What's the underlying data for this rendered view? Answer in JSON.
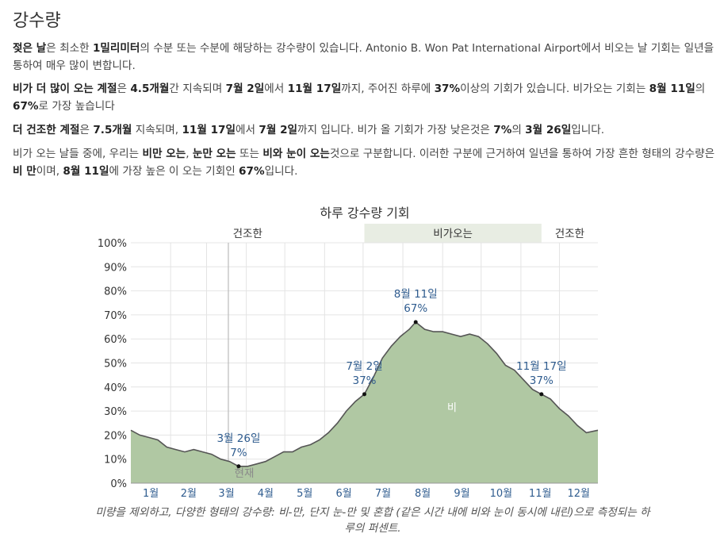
{
  "section_title": "강수량",
  "p1": {
    "a": "젖은 날",
    "b": "은 최소한 ",
    "c": "1밀리미터",
    "d": "의 수분 또는 수분에 해당하는 강수량이 있습니다. Antonio B. Won Pat International Airport에서 비오는 날 기회는 일년을 통하여 매우 많이 변합니다."
  },
  "p2": {
    "a": "비가 더 많이 오는 계절",
    "b": "은 ",
    "c": "4.5개월",
    "d": "간 지속되며 ",
    "e": "7월 2일",
    "f": "에서 ",
    "g": "11월 17일",
    "h": "까지, 주어진 하루에 ",
    "i": "37%",
    "j": "이상의 기회가 있습니다. 비가오는 기회는 ",
    "k": "8월 11일",
    "l": "의 ",
    "m": "67%",
    "n": "로 가장 높습니다"
  },
  "p3": {
    "a": "더 건조한 계절",
    "b": "은 ",
    "c": "7.5개월",
    "d": " 지속되며, ",
    "e": "11월 17일",
    "f": "에서 ",
    "g": "7월 2일",
    "h": "까지 입니다. 비가 올 기회가 가장 낮은것은 ",
    "i": "7%",
    "j": "의 ",
    "k": "3월 26일",
    "l": "입니다."
  },
  "p4": {
    "a": "비가 오는 날들 중에, 우리는 ",
    "b": "비만 오는",
    "c": ", ",
    "d": "눈만 오는",
    "e": " 또는 ",
    "f": "비와 눈이 오는",
    "g": "것으로 구분합니다. 이러한 구분에 근거하여 일년을 통하여 가장 흔한 형태의 강수량은 ",
    "h": "비 만",
    "i": "이며, ",
    "j": "8월 11일",
    "k": "에 가장 높은 이 오는 기회인 ",
    "l": "67%",
    "m": "입니다."
  },
  "caption": "미량을 제외하고, 다양한 형태의 강수량: 비-만, 단지 눈-만 및 혼합 (같은 시간 내에 비와 눈이 동시에 내린)으로 측정되는 하루의 퍼센트.",
  "colors": {
    "area_fill": "#b0c8a3",
    "area_line": "#555555",
    "wet_season_band": "#e8ede3",
    "annotation_blue": "#2f5c8f",
    "grid": "#e4e4e4"
  },
  "chart_data": {
    "type": "area",
    "title": "하루 강수량 기회",
    "ylim": [
      0,
      100
    ],
    "yticks": [
      "0%",
      "10%",
      "20%",
      "30%",
      "40%",
      "50%",
      "60%",
      "70%",
      "80%",
      "90%",
      "100%"
    ],
    "months": [
      "1월",
      "2월",
      "3월",
      "4월",
      "5월",
      "6월",
      "7월",
      "8월",
      "9월",
      "10월",
      "11월",
      "12월"
    ],
    "seasons": [
      {
        "label": "건조한",
        "start_day": 1,
        "end_day": 183,
        "wet": false
      },
      {
        "label": "비가오는",
        "start_day": 183,
        "end_day": 321,
        "wet": true
      },
      {
        "label": "건조한",
        "start_day": 321,
        "end_day": 365,
        "wet": false
      }
    ],
    "series": [
      {
        "name": "비",
        "x_day": [
          1,
          8,
          15,
          22,
          29,
          36,
          43,
          50,
          57,
          64,
          71,
          78,
          85,
          92,
          99,
          106,
          113,
          120,
          127,
          134,
          141,
          148,
          155,
          162,
          169,
          176,
          183,
          190,
          197,
          204,
          211,
          218,
          223,
          230,
          237,
          244,
          251,
          258,
          265,
          272,
          279,
          286,
          293,
          300,
          307,
          314,
          321,
          328,
          335,
          342,
          349,
          356,
          365
        ],
        "y": [
          22,
          20,
          19,
          18,
          15,
          14,
          13,
          14,
          13,
          12,
          10,
          9,
          7,
          7,
          8,
          9,
          11,
          13,
          13,
          15,
          16,
          18,
          21,
          25,
          30,
          34,
          37,
          44,
          52,
          57,
          61,
          64,
          67,
          64,
          63,
          63,
          62,
          61,
          62,
          61,
          58,
          54,
          49,
          47,
          43,
          39,
          37,
          35,
          31,
          28,
          24,
          21,
          22
        ]
      }
    ],
    "annotations": [
      {
        "date": "3월 26일",
        "value": "7%",
        "x_day": 85,
        "y": 7
      },
      {
        "date": "7월 2일",
        "value": "37%",
        "x_day": 183,
        "y": 37
      },
      {
        "date": "8월 11일",
        "value": "67%",
        "x_day": 223,
        "y": 67
      },
      {
        "date": "11월 17일",
        "value": "37%",
        "x_day": 321,
        "y": 37
      }
    ],
    "today_marker": {
      "label": "현재",
      "x_day": 77
    },
    "area_label": "비"
  }
}
